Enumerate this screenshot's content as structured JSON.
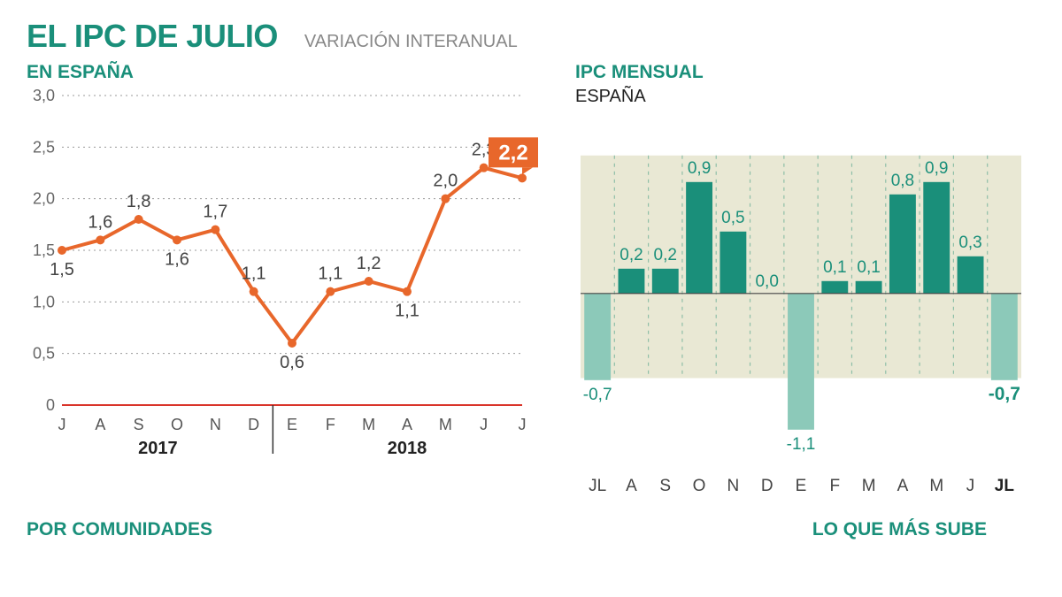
{
  "main_title": "EL IPC DE JULIO",
  "subtitle": "VARIACIÓN INTERANUAL",
  "line_chart": {
    "header": "EN ESPAÑA",
    "type": "line",
    "months": [
      "J",
      "A",
      "S",
      "O",
      "N",
      "D",
      "E",
      "F",
      "M",
      "A",
      "M",
      "J",
      "J"
    ],
    "values": [
      1.5,
      1.6,
      1.8,
      1.6,
      1.7,
      1.1,
      0.6,
      1.1,
      1.2,
      1.1,
      2.0,
      2.3,
      2.2
    ],
    "value_labels": [
      "1,5",
      "1,6",
      "1,8",
      "1,6",
      "1,7",
      "1,1",
      "0,6",
      "1,1",
      "1,2",
      "1,1",
      "2,0",
      "2,3",
      "2,2"
    ],
    "label_above": [
      false,
      true,
      true,
      false,
      true,
      true,
      false,
      true,
      true,
      false,
      true,
      true,
      true
    ],
    "y_ticks": [
      0,
      0.5,
      1.0,
      1.5,
      2.0,
      2.5,
      3.0
    ],
    "y_tick_labels": [
      "0",
      "0,5",
      "1,0",
      "1,5",
      "2,0",
      "2,5",
      "3,0"
    ],
    "year_labels": [
      "2017",
      "2018"
    ],
    "line_color": "#e8672b",
    "line_width": 4,
    "marker_radius": 5,
    "grid_color": "#999999",
    "baseline_color": "#d9342a",
    "divider_color": "#333333",
    "final_badge_bg": "#e8672b",
    "final_badge_text_color": "#ffffff"
  },
  "bar_chart": {
    "header_teal": "IPC MENSUAL",
    "header_black": "ESPAÑA",
    "type": "bar",
    "months": [
      "JL",
      "A",
      "S",
      "O",
      "N",
      "D",
      "E",
      "F",
      "M",
      "A",
      "M",
      "J",
      "JL"
    ],
    "bold_months": [
      false,
      false,
      false,
      false,
      false,
      false,
      false,
      false,
      false,
      false,
      false,
      false,
      true
    ],
    "values": [
      -0.7,
      0.2,
      0.2,
      0.9,
      0.5,
      0.0,
      -1.1,
      0.1,
      0.1,
      0.8,
      0.9,
      0.3,
      -0.7
    ],
    "value_labels": [
      "-0,7",
      "0,2",
      "0,2",
      "0,9",
      "0,5",
      "0,0",
      "-1,1",
      "0,1",
      "0,1",
      "0,8",
      "0,9",
      "0,3",
      "-0,7"
    ],
    "bold_labels": [
      false,
      false,
      false,
      false,
      false,
      false,
      false,
      false,
      false,
      false,
      false,
      false,
      true
    ],
    "pos_color": "#1a8f7a",
    "neg_color": "#8cc9b9",
    "band_color": "#e9e8d4",
    "divider_color": "#8fbfa8",
    "baseline_color": "#444444"
  },
  "bottom_left": "POR COMUNIDADES",
  "bottom_right": "LO QUE MÁS SUBE"
}
